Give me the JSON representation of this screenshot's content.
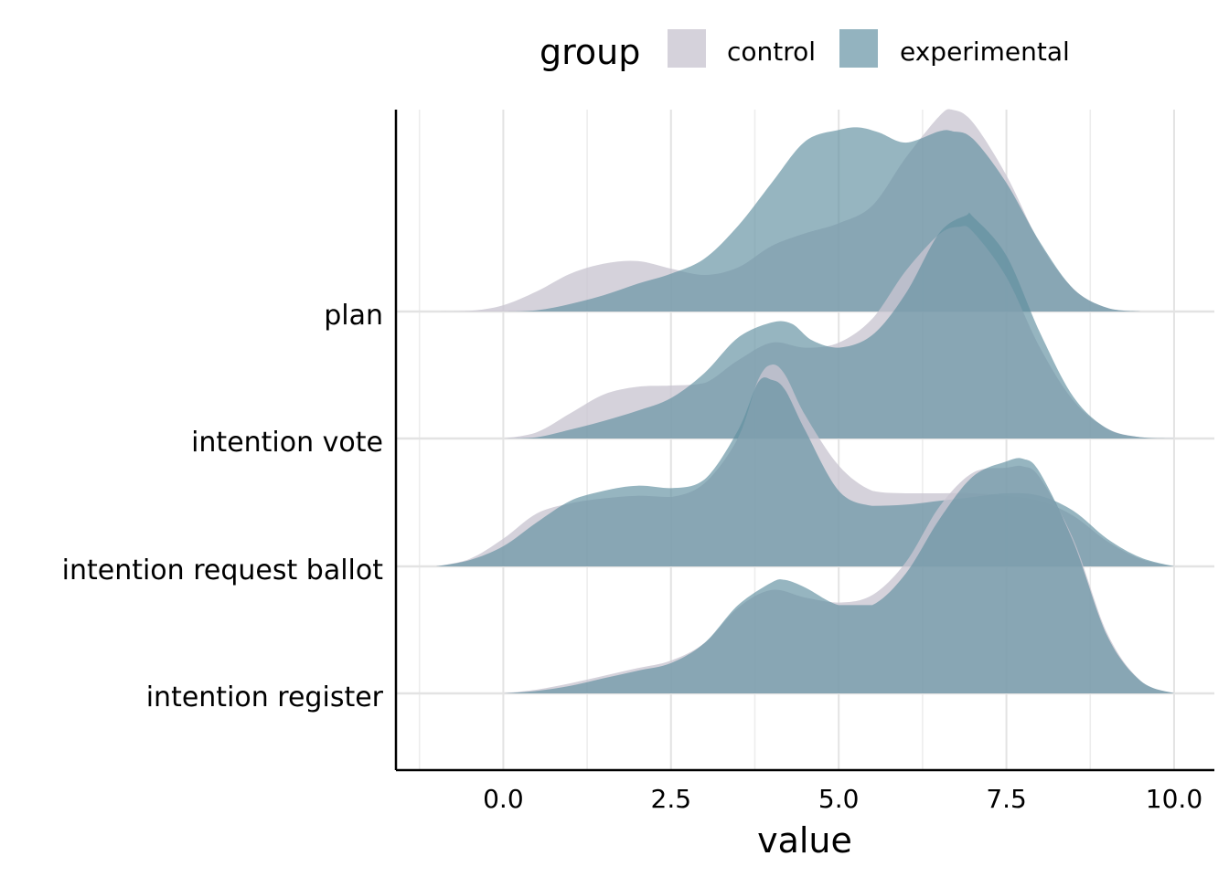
{
  "chart_data": {
    "type": "ridgeline",
    "xlabel": "value",
    "ylabel": "",
    "xlim": [
      -1.6,
      10.6
    ],
    "x_ticks": [
      0.0,
      2.5,
      5.0,
      7.5,
      10.0
    ],
    "x_tick_labels": [
      "0.0",
      "2.5",
      "5.0",
      "7.5",
      "10.0"
    ],
    "categories": [
      "plan",
      "intention vote",
      "intention request ballot",
      "intention register"
    ],
    "legend": {
      "title": "group",
      "position": "top",
      "entries": [
        {
          "name": "control",
          "color": "#c9c5d1"
        },
        {
          "name": "experimental",
          "color": "#5f8ea0"
        }
      ]
    },
    "grid": true,
    "colors": {
      "control": "#c9c5d1",
      "experimental": "#5f8ea0"
    },
    "series": [
      {
        "category": "plan",
        "control": {
          "x": [
            -1.0,
            -0.5,
            0.0,
            0.5,
            1.0,
            1.5,
            2.0,
            2.5,
            3.0,
            3.5,
            4.0,
            4.5,
            5.0,
            5.5,
            6.0,
            6.5,
            6.7,
            7.0,
            7.5,
            8.0,
            8.5,
            9.0,
            9.5
          ],
          "y": [
            0.0,
            0.005,
            0.05,
            0.16,
            0.3,
            0.38,
            0.4,
            0.34,
            0.29,
            0.35,
            0.52,
            0.62,
            0.7,
            0.84,
            1.22,
            1.55,
            1.6,
            1.5,
            1.08,
            0.54,
            0.18,
            0.03,
            0.0
          ]
        },
        "experimental": {
          "x": [
            0.0,
            0.5,
            1.0,
            1.5,
            2.0,
            2.5,
            3.0,
            3.5,
            4.0,
            4.5,
            5.0,
            5.3,
            5.6,
            6.0,
            6.5,
            6.7,
            7.0,
            7.5,
            8.0,
            8.5,
            9.0,
            9.5
          ],
          "y": [
            0.0,
            0.01,
            0.06,
            0.13,
            0.22,
            0.3,
            0.42,
            0.68,
            1.02,
            1.35,
            1.44,
            1.46,
            1.42,
            1.34,
            1.43,
            1.43,
            1.37,
            1.02,
            0.55,
            0.18,
            0.03,
            0.0
          ]
        }
      },
      {
        "category": "intention vote",
        "control": {
          "x": [
            0.0,
            0.5,
            1.0,
            1.5,
            2.0,
            2.5,
            3.0,
            3.5,
            4.0,
            4.5,
            5.0,
            5.5,
            6.0,
            6.5,
            6.8,
            7.0,
            7.5,
            8.0,
            8.5,
            9.0,
            9.5,
            10.0
          ],
          "y": [
            0.0,
            0.05,
            0.2,
            0.35,
            0.41,
            0.42,
            0.44,
            0.62,
            0.76,
            0.72,
            0.76,
            0.95,
            1.33,
            1.62,
            1.68,
            1.64,
            1.28,
            0.72,
            0.3,
            0.08,
            0.01,
            0.0
          ]
        },
        "experimental": {
          "x": [
            0.0,
            0.5,
            1.0,
            1.5,
            2.0,
            2.5,
            3.0,
            3.5,
            4.0,
            4.3,
            4.6,
            5.0,
            5.5,
            6.0,
            6.5,
            6.9,
            7.0,
            7.5,
            8.0,
            8.5,
            9.0,
            9.5,
            10.0
          ],
          "y": [
            0.0,
            0.01,
            0.07,
            0.14,
            0.22,
            0.32,
            0.52,
            0.8,
            0.92,
            0.91,
            0.78,
            0.72,
            0.82,
            1.15,
            1.63,
            1.77,
            1.76,
            1.45,
            0.84,
            0.33,
            0.08,
            0.01,
            0.0
          ]
        }
      },
      {
        "category": "intention request ballot",
        "control": {
          "x": [
            -1.0,
            -0.5,
            0.0,
            0.5,
            1.0,
            1.5,
            2.0,
            2.5,
            3.0,
            3.5,
            3.8,
            4.0,
            4.2,
            4.5,
            5.0,
            5.5,
            6.0,
            6.5,
            7.0,
            7.5,
            8.0,
            8.5,
            9.0,
            9.5,
            10.0
          ],
          "y": [
            0.0,
            0.06,
            0.22,
            0.42,
            0.5,
            0.54,
            0.56,
            0.55,
            0.66,
            1.02,
            1.48,
            1.6,
            1.52,
            1.2,
            0.8,
            0.6,
            0.58,
            0.58,
            0.58,
            0.56,
            0.52,
            0.4,
            0.2,
            0.06,
            0.0
          ]
        },
        "experimental": {
          "x": [
            -1.0,
            -0.5,
            0.0,
            0.5,
            1.0,
            1.5,
            2.0,
            2.5,
            3.0,
            3.5,
            3.8,
            4.0,
            4.2,
            4.5,
            5.0,
            5.5,
            6.0,
            6.5,
            7.0,
            7.5,
            8.0,
            8.5,
            9.0,
            9.5,
            10.0
          ],
          "y": [
            0.0,
            0.05,
            0.16,
            0.35,
            0.52,
            0.6,
            0.64,
            0.62,
            0.69,
            1.08,
            1.46,
            1.48,
            1.4,
            1.08,
            0.6,
            0.48,
            0.49,
            0.52,
            0.55,
            0.58,
            0.56,
            0.44,
            0.22,
            0.07,
            0.0
          ]
        }
      },
      {
        "category": "intention register",
        "control": {
          "x": [
            0.0,
            0.5,
            1.0,
            1.5,
            2.0,
            2.5,
            3.0,
            3.5,
            4.0,
            4.5,
            5.0,
            5.5,
            6.0,
            6.5,
            7.0,
            7.5,
            7.75,
            8.0,
            8.5,
            9.0,
            9.5,
            10.0
          ],
          "y": [
            0.0,
            0.03,
            0.08,
            0.14,
            0.2,
            0.26,
            0.4,
            0.68,
            0.82,
            0.76,
            0.72,
            0.78,
            1.04,
            1.48,
            1.75,
            1.79,
            1.8,
            1.71,
            1.22,
            0.48,
            0.1,
            0.0
          ]
        },
        "experimental": {
          "x": [
            0.0,
            0.5,
            1.0,
            1.5,
            2.0,
            2.5,
            3.0,
            3.5,
            4.0,
            4.2,
            4.5,
            5.0,
            5.5,
            6.0,
            6.5,
            7.0,
            7.5,
            7.75,
            8.0,
            8.5,
            9.0,
            9.5,
            10.0
          ],
          "y": [
            0.0,
            0.02,
            0.06,
            0.12,
            0.18,
            0.24,
            0.4,
            0.7,
            0.88,
            0.9,
            0.84,
            0.7,
            0.7,
            0.95,
            1.38,
            1.72,
            1.84,
            1.86,
            1.75,
            1.2,
            0.46,
            0.1,
            0.0
          ]
        }
      }
    ]
  }
}
